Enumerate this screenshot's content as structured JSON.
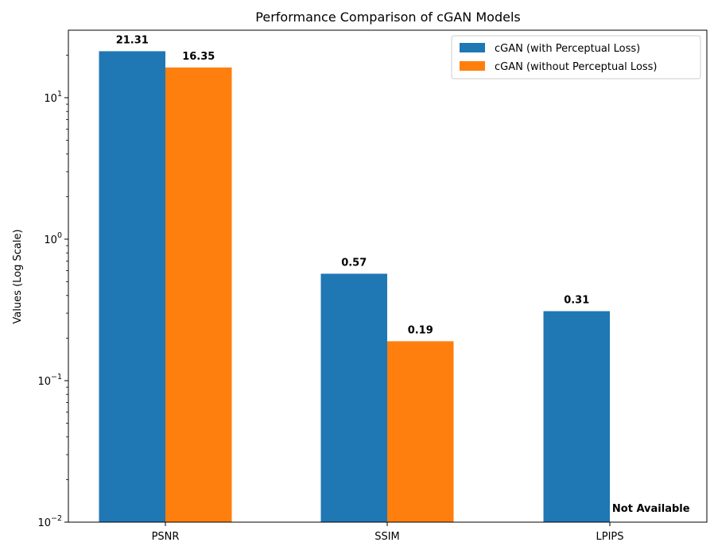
{
  "chart_data": {
    "type": "bar",
    "title": "Performance Comparison of cGAN Models",
    "xlabel": "",
    "ylabel": "Values (Log Scale)",
    "y_scale": "log",
    "ylim": [
      0.01,
      30
    ],
    "categories": [
      "PSNR",
      "SSIM",
      "LPIPS"
    ],
    "series": [
      {
        "name": "cGAN (with Perceptual Loss)",
        "color": "#1f77b4",
        "values": [
          21.31,
          0.57,
          0.31
        ],
        "labels": [
          "21.31",
          "0.57",
          "0.31"
        ]
      },
      {
        "name": "cGAN (without Perceptual Loss)",
        "color": "#ff7f0e",
        "values": [
          16.35,
          0.19,
          null
        ],
        "labels": [
          "16.35",
          "0.19",
          "Not Available"
        ]
      }
    ],
    "y_ticks": [
      {
        "value": 0.01,
        "base": "10",
        "exp": "−2"
      },
      {
        "value": 0.1,
        "base": "10",
        "exp": "−1"
      },
      {
        "value": 1,
        "base": "10",
        "exp": "0"
      },
      {
        "value": 10,
        "base": "10",
        "exp": "1"
      }
    ],
    "legend": {
      "placement": "upper-right"
    },
    "grid": false
  }
}
